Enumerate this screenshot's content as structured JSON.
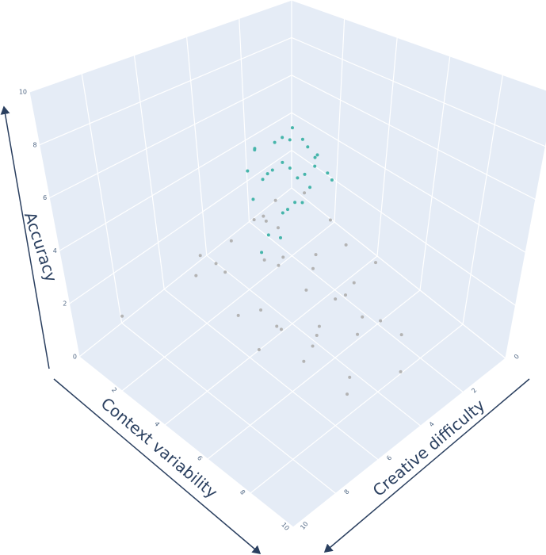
{
  "chart_data": {
    "type": "scatter3d",
    "xlabel": "Creative difficulty",
    "ylabel": "Context variability",
    "zlabel": "Accuracy",
    "xlim": [
      0,
      10
    ],
    "ylim": [
      0,
      10
    ],
    "zlim": [
      0,
      10
    ],
    "xticks": [
      0,
      2,
      4,
      6,
      8,
      10
    ],
    "yticks": [
      2,
      4,
      6,
      8,
      10
    ],
    "zticks": [
      0,
      2,
      4,
      6,
      8,
      10
    ],
    "grid": true,
    "series": [
      {
        "color": "#b3b3b3",
        "x": [
          5.2,
          6.1,
          4.3,
          7.0,
          5.8,
          3.9,
          6.6,
          4.8,
          5.5,
          7.4,
          3.2,
          6.3,
          5.0,
          4.1,
          6.9,
          5.7,
          4.6,
          7.8,
          3.6,
          5.9,
          6.4,
          4.4,
          5.3,
          7.1,
          3.8,
          6.0,
          4.9,
          5.6,
          6.8,
          4.2,
          2.6,
          3.4,
          8.9,
          5.1,
          6.2,
          4.7,
          7.3,
          3.0,
          5.4,
          6.7
        ],
        "y": [
          5.8,
          4.9,
          6.2,
          4.1,
          6.7,
          5.5,
          5.2,
          7.1,
          4.4,
          5.9,
          6.8,
          3.7,
          6.1,
          4.6,
          6.4,
          5.1,
          7.5,
          3.9,
          5.9,
          4.3,
          6.9,
          5.3,
          7.9,
          4.7,
          6.5,
          5.6,
          4.2,
          8.1,
          3.5,
          7.3,
          7.6,
          8.4,
          1.2,
          6.3,
          5.0,
          5.7,
          3.1,
          7.0,
          4.8,
          6.0
        ],
        "z": [
          3.1,
          4.2,
          2.5,
          3.8,
          1.9,
          4.9,
          2.8,
          3.4,
          5.1,
          2.2,
          3.6,
          4.4,
          1.5,
          5.6,
          2.9,
          3.9,
          2.1,
          4.7,
          4.0,
          5.3,
          1.8,
          3.2,
          1.2,
          2.6,
          3.0,
          4.6,
          5.5,
          0.9,
          3.7,
          2.4,
          1.0,
          0.6,
          1.6,
          2.0,
          5.9,
          4.1,
          3.3,
          1.4,
          5.0,
          2.7
        ]
      },
      {
        "color": "#45b5aa",
        "x": [
          5.1,
          4.6,
          5.8,
          5.4,
          4.9,
          6.2,
          4.3,
          5.6,
          5.0,
          6.5,
          4.7,
          5.3,
          5.9,
          4.4,
          6.0,
          5.2,
          4.8,
          5.7,
          6.3,
          4.5,
          5.5,
          4.9,
          6.8,
          5.1,
          4.2,
          5.8,
          6.1,
          5.4,
          6.6,
          5.0
        ],
        "y": [
          5.0,
          5.5,
          4.6,
          5.8,
          4.8,
          4.4,
          5.9,
          5.2,
          5.4,
          4.9,
          4.3,
          6.0,
          5.1,
          5.3,
          5.6,
          4.5,
          6.2,
          4.2,
          5.3,
          5.0,
          5.7,
          4.9,
          5.5,
          5.2,
          5.2,
          4.8,
          5.9,
          3.9,
          6.1,
          5.6
        ],
        "z": [
          7.2,
          7.6,
          6.9,
          6.4,
          8.1,
          7.3,
          6.8,
          7.7,
          8.4,
          6.6,
          7.9,
          7.0,
          7.5,
          7.1,
          6.2,
          8.0,
          7.4,
          7.8,
          5.4,
          6.7,
          7.3,
          8.6,
          5.1,
          6.0,
          7.4,
          7.2,
          6.5,
          7.6,
          5.8,
          8.2
        ]
      }
    ]
  }
}
